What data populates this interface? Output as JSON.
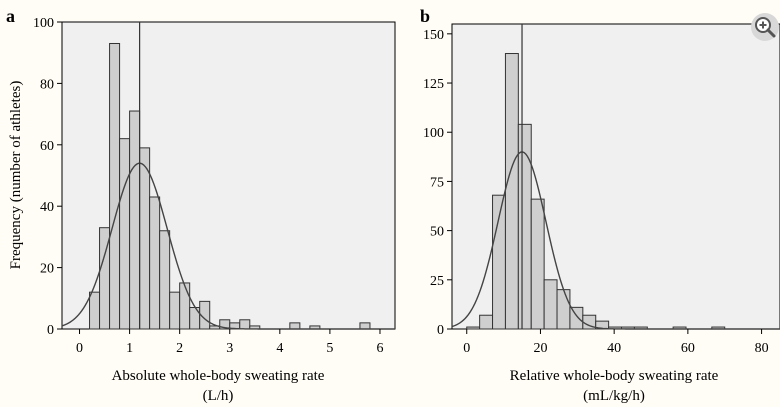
{
  "chart_data": [
    {
      "panel": "a",
      "type": "bar",
      "ylabel": "Frequency (number of athletes)",
      "xlabel": [
        "Absolute whole-body sweating rate",
        "(L/h)"
      ],
      "xlim": [
        -0.35,
        6.3
      ],
      "ylim": [
        0,
        100
      ],
      "xticks": [
        0,
        1,
        2,
        3,
        4,
        5,
        6
      ],
      "yticks": [
        0,
        20,
        40,
        60,
        80,
        100
      ],
      "bin_width": 0.2,
      "bin_starts": [
        0.2,
        0.4,
        0.6,
        0.8,
        1.0,
        1.2,
        1.4,
        1.6,
        1.8,
        2.0,
        2.2,
        2.4,
        2.6,
        2.8,
        3.0,
        3.2,
        3.4,
        4.2,
        4.6,
        5.6
      ],
      "values": [
        12,
        33,
        93,
        62,
        71,
        59,
        43,
        32,
        12,
        15,
        7,
        9,
        1,
        3,
        2,
        3,
        1,
        2,
        1,
        2
      ],
      "mean_line": 1.2,
      "normal_curve": {
        "mean": 1.2,
        "sd": 0.55,
        "peak": 54
      }
    },
    {
      "panel": "b",
      "type": "bar",
      "xlabel": [
        "Relative whole-body sweating rate",
        "(mL/kg/h)"
      ],
      "xlim": [
        -4,
        85
      ],
      "ylim": [
        0,
        155
      ],
      "xticks": [
        0,
        20,
        40,
        60,
        80
      ],
      "yticks": [
        0,
        25,
        50,
        75,
        100,
        125,
        150
      ],
      "bin_width": 3.5,
      "bin_starts": [
        0,
        3.5,
        7,
        10.5,
        14,
        17.5,
        21,
        24.5,
        28,
        31.5,
        35,
        38.5,
        42,
        45.5,
        56,
        66.5
      ],
      "values": [
        1,
        7,
        68,
        140,
        104,
        66,
        25,
        20,
        11,
        7,
        4,
        1,
        1,
        1,
        1,
        1
      ],
      "mean_line": 15,
      "normal_curve": {
        "mean": 15,
        "sd": 6.5,
        "peak": 90
      }
    }
  ]
}
